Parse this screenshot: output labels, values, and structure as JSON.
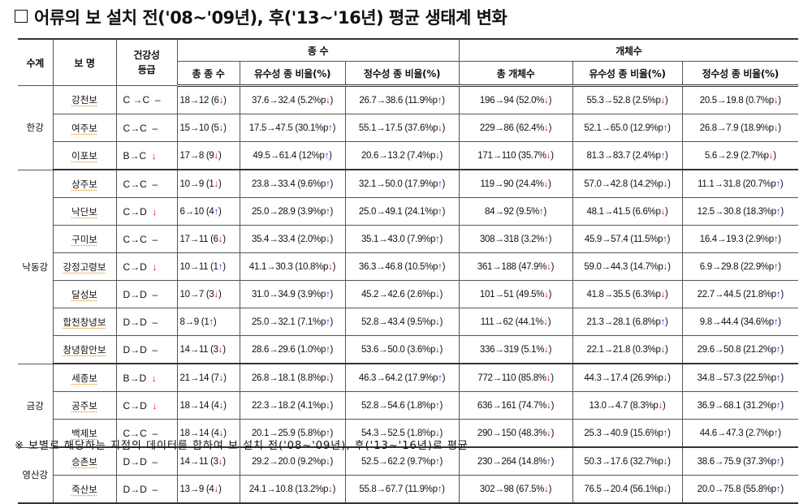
{
  "title": "어류의 보 설치 전('08~'09년), 후('13~'16년) 평균 생태계 변화",
  "colors": {
    "up_arrow": "#1040e0",
    "down_arrow": "#e01010"
  },
  "headers": {
    "river": "수계",
    "weir": "보 명",
    "grade": "건강성 등급",
    "species_group": "종 수",
    "individuals_group": "개체수",
    "total_species": "총 종 수",
    "lotic_species_ratio": "유수성 종 비율(%)",
    "lentic_species_ratio": "정수성 종 비율(%)",
    "total_individuals": "총 개체수",
    "lotic_indiv_ratio": "유수성 종 비율(%)",
    "lentic_indiv_ratio": "정수성 종 비율(%)"
  },
  "groups": [
    {
      "river": "한강",
      "rows": [
        {
          "weir": "강천보",
          "grade": "C →C",
          "grade_trend": "-",
          "total_species": "18→12 (6",
          "ts_dir": "down",
          "lotic_sp": "37.6→32.4 (5.2%p",
          "ls_dir": "down",
          "lentic_sp": "26.7→38.6 (11.9%p",
          "le_dir": "up",
          "total_ind": "196→94 (52.0%",
          "ti_dir": "down",
          "lotic_ind": "55.3→52.8 (2.5%p",
          "li_dir": "down",
          "lentic_ind": "20.5→19.8 (0.7%p",
          "lei_dir": "down"
        },
        {
          "weir": "여주보",
          "grade": "C→C",
          "grade_trend": "-",
          "total_species": "15→10 (5",
          "ts_dir": "down",
          "lotic_sp": "17.5→47.5 (30.1%p",
          "ls_dir": "up",
          "lentic_sp": "55.1→17.5 (37.6%p",
          "le_dir": "down",
          "total_ind": "229→86 (62.4%",
          "ti_dir": "down",
          "lotic_ind": "52.1→65.0 (12.9%p",
          "li_dir": "up",
          "lentic_ind": "26.8→7.9 (18.9%p",
          "lei_dir": "down"
        },
        {
          "weir": "이포보",
          "grade": "B→C",
          "grade_trend": "down",
          "total_species": "17→8 (9",
          "ts_dir": "down",
          "lotic_sp": "49.5→61.4 (12%p",
          "ls_dir": "up",
          "lentic_sp": "20.6→13.2 (7.4%p",
          "le_dir": "down",
          "total_ind": "171→110 (35.7%",
          "ti_dir": "down",
          "lotic_ind": "81.3→83.7 (2.4%p",
          "li_dir": "up",
          "lentic_ind": "5.6→2.9 (2.7%p",
          "lei_dir": "down"
        }
      ]
    },
    {
      "river": "낙동강",
      "rows": [
        {
          "weir": "상주보",
          "grade": "C→C",
          "grade_trend": "-",
          "total_species": "10→9 (1",
          "ts_dir": "down",
          "lotic_sp": "23.8→33.4 (9.6%p",
          "ls_dir": "up",
          "lentic_sp": "32.1→50.0 (17.9%p",
          "le_dir": "up",
          "total_ind": "119→90 (24.4%",
          "ti_dir": "down",
          "lotic_ind": "57.0→42.8 (14.2%p",
          "li_dir": "down",
          "lentic_ind": "11.1→31.8 (20.7%p",
          "lei_dir": "up"
        },
        {
          "weir": "낙단보",
          "grade": "C→D",
          "grade_trend": "down",
          "total_species": "6→10 (4",
          "ts_dir": "up",
          "lotic_sp": "25.0→28.9 (3.9%p",
          "ls_dir": "up",
          "lentic_sp": "25.0→49.1 (24.1%p",
          "le_dir": "up",
          "total_ind": "84→92 (9.5%",
          "ti_dir": "up",
          "lotic_ind": "48.1→41.5 (6.6%p",
          "li_dir": "down",
          "lentic_ind": "12.5→30.8 (18.3%p",
          "lei_dir": "up"
        },
        {
          "weir": "구미보",
          "grade": "C→C",
          "grade_trend": "-",
          "total_species": "17→11 (6",
          "ts_dir": "down",
          "lotic_sp": "35.4→33.4 (2.0%p",
          "ls_dir": "down",
          "lentic_sp": "35.1→43.0 (7.9%p",
          "le_dir": "up",
          "total_ind": "308→318 (3.2%",
          "ti_dir": "up",
          "lotic_ind": "45.9→57.4 (11.5%p",
          "li_dir": "up",
          "lentic_ind": "16.4→19.3 (2.9%p",
          "lei_dir": "up"
        },
        {
          "weir": "강정고령보",
          "grade": "C→D",
          "grade_trend": "down",
          "total_species": "10→11 (1",
          "ts_dir": "up",
          "lotic_sp": "41.1→30.3 (10.8%p",
          "ls_dir": "down",
          "lentic_sp": "36.3→46.8 (10.5%p",
          "le_dir": "up",
          "total_ind": "361→188 (47.9%",
          "ti_dir": "down",
          "lotic_ind": "59.0→44.3 (14.7%p",
          "li_dir": "down",
          "lentic_ind": "6.9→29.8 (22.9%p",
          "lei_dir": "up"
        },
        {
          "weir": "달성보",
          "grade": "D→D",
          "grade_trend": "-",
          "total_species": "10→7 (3",
          "ts_dir": "down",
          "lotic_sp": "31.0→34.9 (3.9%p",
          "ls_dir": "up",
          "lentic_sp": "45.2→42.6 (2.6%p",
          "le_dir": "down",
          "total_ind": "101→51 (49.5%",
          "ti_dir": "down",
          "lotic_ind": "41.8→35.5 (6.3%p",
          "li_dir": "down",
          "lentic_ind": "22.7→44.5 (21.8%p",
          "lei_dir": "up"
        },
        {
          "weir": "합천창녕보",
          "grade": "D→D",
          "grade_trend": "-",
          "total_species": "8→9 (1",
          "ts_dir": "up",
          "lotic_sp": "25.0→32.1 (7.1%p",
          "ls_dir": "up",
          "lentic_sp": "52.8→43.4 (9.5%p",
          "le_dir": "down",
          "total_ind": "111→62 (44.1%",
          "ti_dir": "down",
          "lotic_ind": "21.3→28.1 (6.8%p",
          "li_dir": "up",
          "lentic_ind": "9.8→44.4 (34.6%p",
          "lei_dir": "up"
        },
        {
          "weir": "창녕함안보",
          "grade": "D→D",
          "grade_trend": "-",
          "total_species": "14→11 (3",
          "ts_dir": "down",
          "lotic_sp": "28.6→29.6 (1.0%p",
          "ls_dir": "up",
          "lentic_sp": "53.6→50.0 (3.6%p",
          "le_dir": "down",
          "total_ind": "336→319 (5.1%",
          "ti_dir": "down",
          "lotic_ind": "22.1→21.8 (0.3%p",
          "li_dir": "down",
          "lentic_ind": "29.6→50.8 (21.2%p",
          "lei_dir": "up"
        }
      ]
    },
    {
      "river": "금강",
      "rows": [
        {
          "weir": "세종보",
          "grade": "B→D",
          "grade_trend": "down",
          "total_species": "21→14 (7",
          "ts_dir": "down",
          "lotic_sp": "26.8→18.1 (8.8%p",
          "ls_dir": "down",
          "lentic_sp": "46.3→64.2 (17.9%p",
          "le_dir": "up",
          "total_ind": "772→110 (85.8%",
          "ti_dir": "down",
          "lotic_ind": "44.3→17.4 (26.9%p",
          "li_dir": "down",
          "lentic_ind": "34.8→57.3 (22.5%p",
          "lei_dir": "up"
        },
        {
          "weir": "공주보",
          "grade": "C→D",
          "grade_trend": "down",
          "total_species": "18→14 (4",
          "ts_dir": "down",
          "lotic_sp": "22.3→18.2 (4.1%p",
          "ls_dir": "down",
          "lentic_sp": "52.8→54.6 (1.8%p",
          "le_dir": "up",
          "total_ind": "636→161 (74.7%",
          "ti_dir": "down",
          "lotic_ind": "13.0→4.7 (8.3%p",
          "li_dir": "down",
          "lentic_ind": "36.9→68.1 (31.2%p",
          "lei_dir": "up"
        },
        {
          "weir": "백제보",
          "grade": "C→C",
          "grade_trend": "-",
          "total_species": "18→14 (4",
          "ts_dir": "down",
          "lotic_sp": "20.1→25.9 (5.8%p",
          "ls_dir": "up",
          "lentic_sp": "54.3→52.5 (1.8%p",
          "le_dir": "down",
          "total_ind": "290→150 (48.3%",
          "ti_dir": "down",
          "lotic_ind": "25.3→40.9 (15.6%p",
          "li_dir": "up",
          "lentic_ind": "44.6→47.3 (2.7%p",
          "lei_dir": "up"
        }
      ]
    },
    {
      "river": "영산강",
      "rows": [
        {
          "weir": "승촌보",
          "grade": "D→D",
          "grade_trend": "-",
          "total_species": "14→11 (3",
          "ts_dir": "down",
          "lotic_sp": "29.2→20.0 (9.2%p",
          "ls_dir": "down",
          "lentic_sp": "52.5→62.2 (9.7%p",
          "le_dir": "up",
          "total_ind": "230→264 (14.8%",
          "ti_dir": "up",
          "lotic_ind": "50.3→17.6 (32.7%p",
          "li_dir": "down",
          "lentic_ind": "38.6→75.9 (37.3%p",
          "lei_dir": "up"
        },
        {
          "weir": "죽산보",
          "grade": "D→D",
          "grade_trend": "-",
          "total_species": "13→9 (4",
          "ts_dir": "down",
          "lotic_sp": "24.1→10.8 (13.2%p",
          "ls_dir": "down",
          "lentic_sp": "55.8→67.7 (11.9%p",
          "le_dir": "up",
          "total_ind": "302→98 (67.5%",
          "ti_dir": "down",
          "lotic_ind": "76.5→20.4 (56.1%p",
          "li_dir": "down",
          "lentic_ind": "20.0→75.8 (55.8%p",
          "lei_dir": "up"
        }
      ]
    }
  ],
  "footnote": "※ 보별로 해당하는 지점의 데이터를 합하여 보 설치 전('08~'09년), 후('13~'16년)로 평균"
}
